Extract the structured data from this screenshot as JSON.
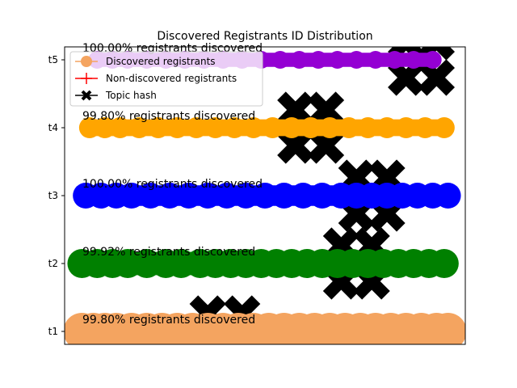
{
  "chart_data": {
    "type": "scatter",
    "title": "Discovered Registrants ID Distribution",
    "xlabel": "",
    "ylabel": "",
    "x_ticks_visible": false,
    "categories": [
      "t1",
      "t2",
      "t3",
      "t4",
      "t5"
    ],
    "grid": false,
    "legend": {
      "placement": "top-left",
      "entries": [
        {
          "label": "Discovered registrants",
          "marker": "circle",
          "color": "#f4a460"
        },
        {
          "label": "Non-discovered registrants",
          "marker": "plus",
          "color": "#ff0000"
        },
        {
          "label": "Topic hash",
          "marker": "X",
          "color": "#000000"
        }
      ]
    },
    "series": [
      {
        "category": "t1",
        "color": "#f4a460",
        "annotation": "99.80% registrants discovered",
        "marker_radius": 23,
        "x": [
          0.02,
          0.05,
          0.08,
          0.11,
          0.15,
          0.19,
          0.23,
          0.27,
          0.31,
          0.35,
          0.39,
          0.43,
          0.47,
          0.51,
          0.55,
          0.59,
          0.63,
          0.67,
          0.71,
          0.75,
          0.79,
          0.83,
          0.87,
          0.91,
          0.95,
          0.98
        ]
      },
      {
        "category": "t2",
        "color": "#008000",
        "annotation": "99.92% registrants discovered",
        "marker_radius": 18,
        "x": [
          0.02,
          0.06,
          0.1,
          0.14,
          0.19,
          0.24,
          0.28,
          0.33,
          0.37,
          0.41,
          0.45,
          0.49,
          0.53,
          0.57,
          0.61,
          0.65,
          0.69,
          0.73,
          0.77,
          0.81,
          0.85,
          0.89,
          0.93,
          0.97
        ]
      },
      {
        "category": "t3",
        "color": "#0000ff",
        "annotation": "100.00% registrants discovered",
        "marker_radius": 16,
        "x": [
          0.03,
          0.07,
          0.11,
          0.15,
          0.2,
          0.25,
          0.3,
          0.35,
          0.4,
          0.45,
          0.5,
          0.55,
          0.6,
          0.65,
          0.7,
          0.74,
          0.78,
          0.82,
          0.86,
          0.9,
          0.94,
          0.98
        ]
      },
      {
        "category": "t4",
        "color": "#ffa500",
        "annotation": "99.80% registrants discovered",
        "marker_radius": 13,
        "x": [
          0.04,
          0.08,
          0.12,
          0.17,
          0.22,
          0.27,
          0.32,
          0.37,
          0.42,
          0.47,
          0.52,
          0.57,
          0.62,
          0.67,
          0.72,
          0.77,
          0.82,
          0.87,
          0.92,
          0.97
        ]
      },
      {
        "category": "t5",
        "color": "#9400d3",
        "annotation": "100.00% registrants discovered",
        "marker_radius": 11,
        "x": [
          0.06,
          0.1,
          0.14,
          0.19,
          0.24,
          0.29,
          0.34,
          0.39,
          0.44,
          0.49,
          0.54,
          0.59,
          0.64,
          0.69,
          0.74,
          0.79,
          0.84,
          0.89,
          0.94
        ]
      }
    ],
    "topic_hash": [
      {
        "category": "t1",
        "x": [
          0.35,
          0.44
        ]
      },
      {
        "category": "t2",
        "x": [
          0.7,
          0.78
        ]
      },
      {
        "category": "t3",
        "x": [
          0.74,
          0.82
        ]
      },
      {
        "category": "t4",
        "x": [
          0.58,
          0.66
        ]
      },
      {
        "category": "t5",
        "x": [
          0.87,
          0.95
        ]
      }
    ]
  }
}
